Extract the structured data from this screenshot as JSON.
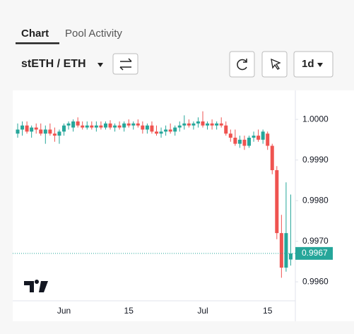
{
  "tabs": [
    "Chart",
    "Pool Activity"
  ],
  "pair": "stETH / ETH",
  "interval": "1d",
  "chart_data": {
    "type": "candlestick",
    "up_color": "#26a69a",
    "down_color": "#ef5350",
    "categories": [
      null,
      null,
      null,
      null,
      null,
      null,
      null,
      null,
      null,
      null,
      "Jun",
      null,
      null,
      null,
      null,
      null,
      null,
      null,
      null,
      null,
      null,
      null,
      null,
      null,
      "15",
      null,
      null,
      null,
      null,
      null,
      null,
      null,
      null,
      null,
      null,
      null,
      null,
      null,
      null,
      null,
      "Jul",
      null,
      null,
      null,
      null,
      null,
      null,
      null,
      null,
      null,
      null,
      null,
      null,
      null,
      "15",
      null,
      null,
      null,
      null,
      null
    ],
    "open": [
      0.99965,
      0.99975,
      0.99985,
      0.9997,
      0.9998,
      0.99975,
      0.99965,
      0.99975,
      0.99965,
      0.9996,
      0.9997,
      0.99985,
      0.9998,
      0.99995,
      0.99985,
      0.9998,
      0.99985,
      0.9998,
      0.99985,
      0.9998,
      0.9999,
      0.9998,
      0.99985,
      0.9998,
      0.9999,
      0.99985,
      0.9999,
      0.99985,
      0.99975,
      0.99985,
      0.9997,
      0.99965,
      0.9997,
      0.99975,
      0.9997,
      0.9998,
      0.99985,
      0.9999,
      0.99985,
      0.9999,
      0.99995,
      0.99985,
      0.9999,
      0.99985,
      0.9999,
      0.99985,
      0.99965,
      0.99955,
      0.9994,
      0.9995,
      0.99935,
      0.99955,
      0.9996,
      0.9995,
      0.99965,
      0.99935,
      0.99875,
      0.9972,
      0.99635,
      0.99655
    ],
    "high": [
      0.9999,
      0.99995,
      0.99995,
      0.99985,
      0.9999,
      0.9999,
      0.99985,
      0.9999,
      0.9998,
      0.99975,
      0.9999,
      0.99995,
      1.0,
      1.00005,
      0.99995,
      0.99995,
      0.99995,
      0.99995,
      0.99995,
      0.99995,
      0.99998,
      0.9999,
      0.99995,
      0.99995,
      1.0,
      0.99995,
      1.0,
      0.99995,
      0.9999,
      0.99995,
      0.99985,
      0.9998,
      0.99985,
      0.9999,
      0.99985,
      0.99995,
      1.0001,
      1.0,
      0.99995,
      1.00005,
      1.0002,
      0.99995,
      1.0,
      0.99995,
      1.00005,
      0.99995,
      0.99975,
      0.99975,
      0.9996,
      0.9996,
      0.9996,
      0.9997,
      0.99975,
      0.99975,
      0.9997,
      0.9994,
      0.99885,
      0.99765,
      0.99845,
      0.99815
    ],
    "low": [
      0.99955,
      0.9996,
      0.99965,
      0.99955,
      0.99965,
      0.9996,
      0.9994,
      0.9996,
      0.99945,
      0.9994,
      0.9996,
      0.99975,
      0.9997,
      0.9998,
      0.99975,
      0.99975,
      0.99975,
      0.9997,
      0.99975,
      0.99975,
      0.99975,
      0.9997,
      0.99975,
      0.9997,
      0.9998,
      0.99975,
      0.9998,
      0.99965,
      0.99965,
      0.99965,
      0.9996,
      0.99955,
      0.9996,
      0.99965,
      0.9996,
      0.9997,
      0.99975,
      0.9998,
      0.99975,
      0.9998,
      0.9998,
      0.99975,
      0.99975,
      0.99975,
      0.9998,
      0.9996,
      0.99945,
      0.99935,
      0.9993,
      0.99925,
      0.9993,
      0.99945,
      0.99945,
      0.9994,
      0.99925,
      0.99865,
      0.99705,
      0.9961,
      0.99625,
      0.9964
    ],
    "close": [
      0.99975,
      0.99985,
      0.9997,
      0.9998,
      0.99975,
      0.99965,
      0.99975,
      0.99965,
      0.9996,
      0.9997,
      0.99985,
      0.9999,
      0.99995,
      0.99985,
      0.9998,
      0.99985,
      0.9998,
      0.99985,
      0.9998,
      0.9999,
      0.9998,
      0.99985,
      0.9998,
      0.9999,
      0.99985,
      0.9999,
      0.99985,
      0.99975,
      0.99985,
      0.9997,
      0.99965,
      0.9997,
      0.99975,
      0.9997,
      0.9998,
      0.99985,
      0.9999,
      0.99985,
      0.9999,
      0.99995,
      0.99985,
      0.9999,
      0.99985,
      0.9999,
      0.99985,
      0.99965,
      0.99955,
      0.9994,
      0.9995,
      0.99935,
      0.99955,
      0.9996,
      0.9995,
      0.9997,
      0.99935,
      0.99875,
      0.9972,
      0.99635,
      0.9972,
      0.9967
    ],
    "last_price": 0.9967,
    "ylim": [
      0.99555,
      1.00068
    ],
    "yticks": [
      {
        "value": 1,
        "label": "1.0000"
      },
      {
        "value": 0.999,
        "label": "0.9990"
      },
      {
        "value": 0.998,
        "label": "0.9980"
      },
      {
        "value": 0.997,
        "label": "0.9970"
      },
      {
        "value": 0.996,
        "label": "0.9960"
      }
    ]
  }
}
